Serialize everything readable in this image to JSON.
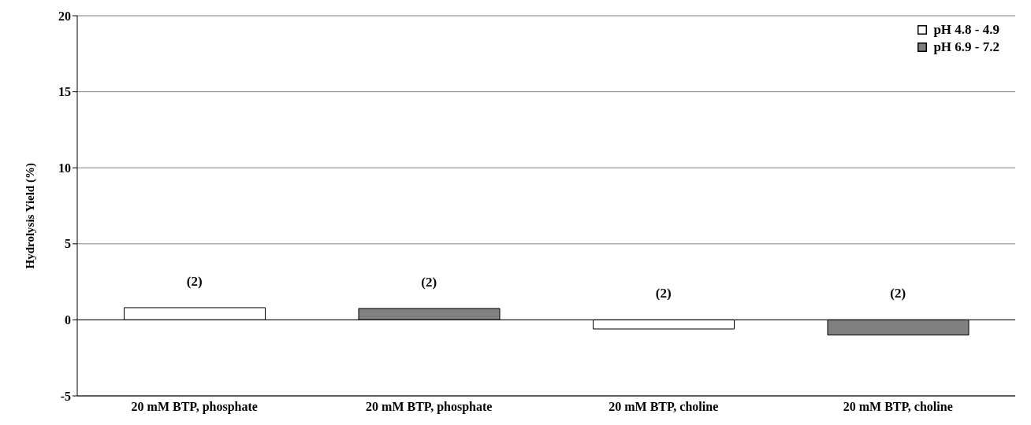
{
  "chart_data": {
    "type": "bar",
    "ylabel": "Hydrolysis Yield (%)",
    "categories": [
      "20 mM BTP, phosphate",
      "20 mM BTP, phosphate",
      "20 mM BTP, choline",
      "20 mM BTP, choline"
    ],
    "series": [
      {
        "name": "pH 4.8 - 4.9",
        "color": "#ffffff",
        "values": [
          0.8,
          null,
          -0.6,
          null
        ]
      },
      {
        "name": "pH 6.9 - 7.2",
        "color": "#808080",
        "values": [
          null,
          0.75,
          null,
          -1.0
        ]
      }
    ],
    "ylim": [
      -5,
      20
    ],
    "yticks": [
      -5,
      0,
      5,
      10,
      15,
      20
    ],
    "grid": "y",
    "legend": "top right",
    "annotations": [
      "(2)",
      "(2)",
      "(2)",
      "(2)"
    ]
  }
}
